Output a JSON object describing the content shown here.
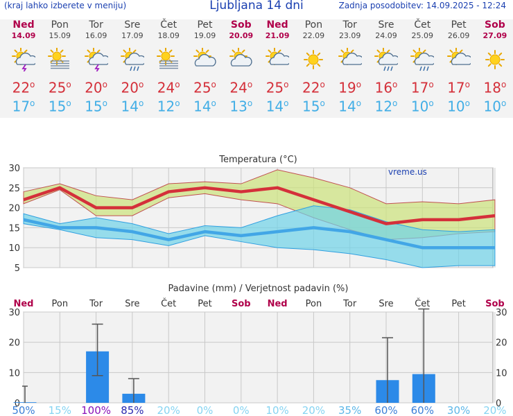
{
  "header": {
    "left": "(kraj lahko izberete v meniju)",
    "title": "Ljubljana 14 dni",
    "updated": "Zadnja posodobitev: 14.09.2025 - 12:24"
  },
  "days": [
    {
      "name": "Ned",
      "date": "14.09",
      "weekend": true,
      "icon": "sun-cloud-storm-icon",
      "tmax": "22",
      "tmin": "17"
    },
    {
      "name": "Pon",
      "date": "15.09",
      "weekend": false,
      "icon": "sun-fog-icon",
      "tmax": "25",
      "tmin": "15"
    },
    {
      "name": "Tor",
      "date": "16.09",
      "weekend": false,
      "icon": "sun-cloud-storm-icon",
      "tmax": "20",
      "tmin": "15"
    },
    {
      "name": "Sre",
      "date": "17.09",
      "weekend": false,
      "icon": "sun-cloud-rain-icon",
      "tmax": "20",
      "tmin": "14"
    },
    {
      "name": "Čet",
      "date": "18.09",
      "weekend": false,
      "icon": "sun-fog-icon",
      "tmax": "24",
      "tmin": "12"
    },
    {
      "name": "Pet",
      "date": "19.09",
      "weekend": false,
      "icon": "cloud-sun-icon",
      "tmax": "25",
      "tmin": "14"
    },
    {
      "name": "Sob",
      "date": "20.09",
      "weekend": true,
      "icon": "cloud-sun-icon",
      "tmax": "24",
      "tmin": "13"
    },
    {
      "name": "Ned",
      "date": "21.09",
      "weekend": true,
      "icon": "sun-cloud-icon",
      "tmax": "25",
      "tmin": "14"
    },
    {
      "name": "Pon",
      "date": "22.09",
      "weekend": false,
      "icon": "sun-icon",
      "tmax": "22",
      "tmin": "15"
    },
    {
      "name": "Tor",
      "date": "23.09",
      "weekend": false,
      "icon": "sun-cloud-icon",
      "tmax": "19",
      "tmin": "14"
    },
    {
      "name": "Sre",
      "date": "24.09",
      "weekend": false,
      "icon": "sun-cloud-rain-icon",
      "tmax": "16",
      "tmin": "12"
    },
    {
      "name": "Čet",
      "date": "25.09",
      "weekend": false,
      "icon": "sun-cloud-rain-icon",
      "tmax": "17",
      "tmin": "10"
    },
    {
      "name": "Pet",
      "date": "26.09",
      "weekend": false,
      "icon": "sun-cloud-icon",
      "tmax": "17",
      "tmin": "10"
    },
    {
      "name": "Sob",
      "date": "27.09",
      "weekend": true,
      "icon": "sun-icon",
      "tmax": "18",
      "tmin": "10"
    }
  ],
  "chart_data": [
    {
      "type": "line",
      "title": "Temperatura (°C)",
      "watermark": "vreme.us",
      "ylim": [
        5,
        30
      ],
      "yticks": [
        5,
        10,
        15,
        20,
        25,
        30
      ],
      "x": [
        "14.09",
        "15.09",
        "16.09",
        "17.09",
        "18.09",
        "19.09",
        "20.09",
        "21.09",
        "22.09",
        "23.09",
        "24.09",
        "25.09",
        "26.09",
        "27.09"
      ],
      "series": [
        {
          "name": "max",
          "color": "#d4303a",
          "values": [
            22,
            25,
            20,
            20,
            24,
            25,
            24,
            25,
            22,
            19,
            16,
            17,
            17,
            18
          ]
        },
        {
          "name": "max_high",
          "values": [
            24,
            26,
            23,
            22,
            26,
            26.5,
            26,
            29.5,
            27.5,
            25,
            21,
            21.5,
            21,
            22
          ]
        },
        {
          "name": "max_low",
          "values": [
            21,
            24.5,
            18,
            18,
            22.5,
            23.5,
            22,
            21,
            17.5,
            14.5,
            12,
            12.5,
            13.5,
            14
          ]
        },
        {
          "name": "min",
          "color": "#42aee6",
          "values": [
            17,
            15,
            15,
            14,
            12,
            14,
            13,
            14,
            15,
            14,
            12,
            10,
            10,
            10
          ]
        },
        {
          "name": "min_high",
          "values": [
            18.5,
            16,
            17.5,
            16,
            13.5,
            15.5,
            15,
            18,
            20.5,
            19.5,
            16.5,
            14.5,
            14,
            14.5
          ]
        },
        {
          "name": "min_low",
          "values": [
            16,
            14.5,
            12.5,
            12,
            10.5,
            13,
            11.5,
            10,
            9.5,
            8.5,
            7,
            5,
            5.5,
            5.5
          ]
        }
      ]
    },
    {
      "type": "bar",
      "title": "Padavine (mm) / Verjetnost padavin (%)",
      "ylim": [
        0,
        30
      ],
      "yticks": [
        0,
        10,
        20,
        30
      ],
      "categories": [
        "Ned",
        "Pon",
        "Tor",
        "Sre",
        "Čet",
        "Pet",
        "Sob",
        "Ned",
        "Pon",
        "Tor",
        "Sre",
        "Čet",
        "Pet",
        "Sob"
      ],
      "weekend": [
        true,
        false,
        false,
        false,
        false,
        false,
        true,
        true,
        false,
        false,
        false,
        false,
        false,
        true
      ],
      "values": [
        0.2,
        0,
        17,
        3,
        0,
        0,
        0,
        0,
        0,
        0,
        7.5,
        9.5,
        0,
        0
      ],
      "err_low": [
        0,
        0,
        9,
        0,
        0,
        0,
        0,
        0,
        0,
        0,
        0,
        0,
        0,
        0
      ],
      "err_high": [
        5.5,
        0,
        26,
        8,
        0,
        0,
        0,
        0,
        0,
        0,
        21.5,
        31,
        0,
        0
      ],
      "probability": [
        "50%",
        "15%",
        "100%",
        "85%",
        "20%",
        "0%",
        "0%",
        "10%",
        "20%",
        "35%",
        "60%",
        "60%",
        "30%",
        "20%"
      ],
      "probability_values": [
        50,
        15,
        100,
        85,
        20,
        0,
        0,
        10,
        20,
        35,
        60,
        60,
        30,
        20
      ]
    }
  ]
}
